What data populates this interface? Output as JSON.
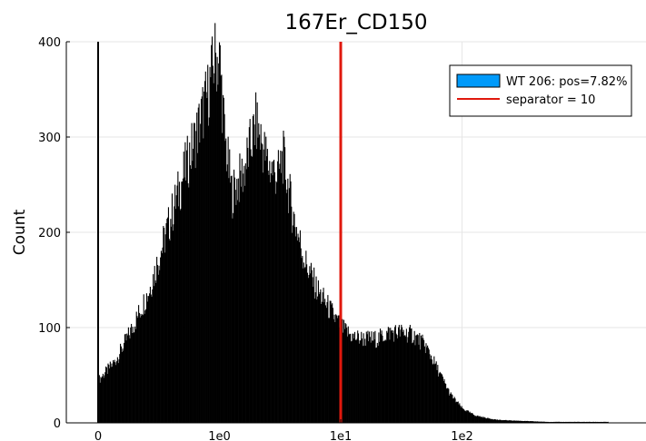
{
  "chart_data": {
    "type": "bar",
    "title": "167Er_CD150",
    "xlabel": "",
    "ylabel": "Count",
    "xscale": "arcsinh-like (0, 1e0, 1e1, 1e2)",
    "x_ticks": [
      "0",
      "1e0",
      "1e1",
      "1e2"
    ],
    "y_ticks": [
      "0",
      "100",
      "200",
      "300",
      "400"
    ],
    "ylim": [
      0,
      400
    ],
    "grid": true,
    "legend_position": "top-right",
    "series": [
      {
        "name": "WT 206: pos=7.82%",
        "kind": "histogram",
        "fill_color": "#009AFA",
        "bar_color": "#000000",
        "bin_label_units": "transformed axis: 0=0, 1=1e0, 2=1e1, 3=1e2",
        "x": [
          0.0,
          0.14,
          0.28,
          0.42,
          0.56,
          0.7,
          0.8,
          0.9,
          0.96,
          1.0,
          1.04,
          1.1,
          1.2,
          1.3,
          1.4,
          1.48,
          1.52,
          1.6,
          1.7,
          1.8,
          1.9,
          2.0,
          2.1,
          2.2,
          2.3,
          2.4,
          2.5,
          2.6,
          2.7,
          2.8,
          2.9,
          3.0,
          3.1,
          3.2,
          3.3,
          3.5,
          3.7,
          3.9,
          4.2
        ],
        "values": [
          45,
          65,
          100,
          140,
          200,
          260,
          300,
          345,
          385,
          380,
          300,
          240,
          265,
          315,
          270,
          260,
          280,
          220,
          170,
          140,
          120,
          100,
          90,
          88,
          88,
          95,
          95,
          92,
          80,
          55,
          30,
          15,
          8,
          5,
          3,
          2,
          1,
          1,
          1
        ]
      },
      {
        "name": "separator = 10",
        "kind": "vline",
        "x": 2.0,
        "color": "#E0180D"
      }
    ]
  }
}
